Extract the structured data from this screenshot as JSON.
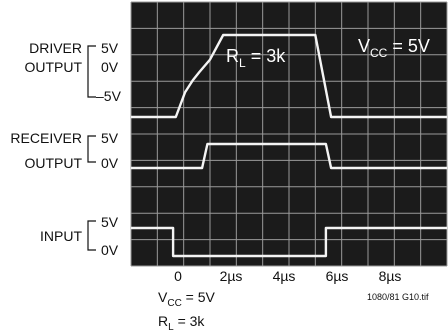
{
  "chart_data": {
    "type": "line",
    "x_tick_labels": [
      "0",
      "2µs",
      "4µs",
      "6µs",
      "8µs"
    ],
    "x_ticks": [
      0,
      2,
      4,
      6,
      8
    ],
    "x_range": [
      -2,
      10
    ],
    "grid": true,
    "series": [
      {
        "label_lines": [
          "DRIVER",
          "OUTPUT"
        ],
        "scale_labels": [
          "5V",
          "0V",
          "–5V"
        ],
        "y_range": [
          -5,
          5
        ],
        "x": [
          -2,
          -0.3,
          0.05,
          0.35,
          0.6,
          1.0,
          1.5,
          5.0,
          5.3,
          5.6,
          10
        ],
        "y": [
          -5,
          -5,
          -2,
          -0.5,
          0.5,
          2,
          5,
          5,
          0,
          -5,
          -5
        ]
      },
      {
        "label_lines": [
          "RECEIVER",
          "OUTPUT"
        ],
        "scale_labels": [
          "5V",
          "0V"
        ],
        "y_range": [
          0,
          5
        ],
        "x": [
          -2,
          0.7,
          0.9,
          5.4,
          5.6,
          10
        ],
        "y": [
          0,
          0,
          5,
          5,
          0,
          0
        ]
      },
      {
        "label_lines": [
          "INPUT"
        ],
        "scale_labels": [
          "5V",
          "0V"
        ],
        "y_range": [
          0,
          5
        ],
        "x": [
          -2,
          -0.4,
          -0.4,
          5.4,
          5.4,
          10
        ],
        "y": [
          5,
          5,
          0,
          0,
          5,
          5
        ]
      }
    ],
    "annotations": {
      "scope_load": "R",
      "scope_load_sub": "L",
      "scope_load_value": " = 3k",
      "scope_vcc": "V",
      "scope_vcc_sub": "CC",
      "scope_vcc_value": " = 5V"
    }
  },
  "conditions": {
    "vcc_main": "V",
    "vcc_sub": "CC",
    "vcc_value": " = 5V",
    "rl_main": "R",
    "rl_sub": "L",
    "rl_value": " = 3k"
  },
  "figure_id": "1080/81 G10.tif"
}
